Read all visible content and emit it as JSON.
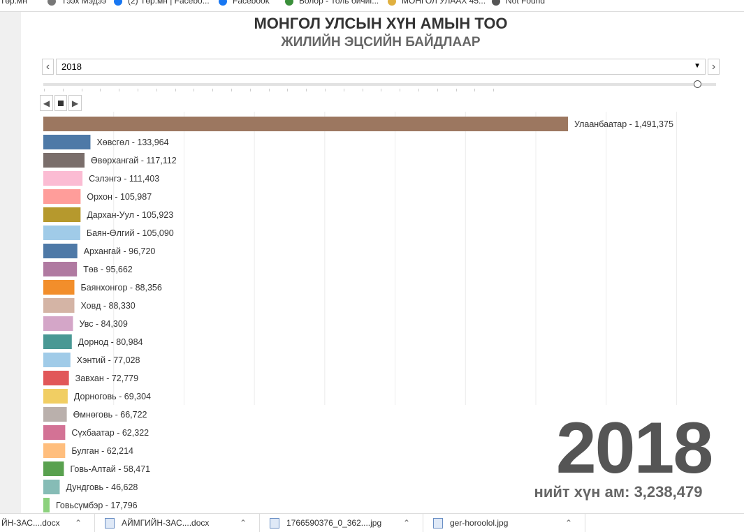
{
  "browser": {
    "bookmarks": [
      "Төр.мн",
      "Тээх Мэдээ",
      "(2) Төр.мн | Facebo...",
      "Facebook",
      "Болор - Толь бичиг...",
      "МОНГОЛ УЛААХ 45...",
      "Not Found"
    ],
    "downloads": [
      {
        "name": "ЙН-ЗАС....docx"
      },
      {
        "name": "АЙМГИЙН-ЗАС....docx"
      },
      {
        "name": "1766590376_0_362....jpg"
      },
      {
        "name": "ger-horoolol.jpg"
      }
    ]
  },
  "header": {
    "title": "МОНГОЛ УЛСЫН ХҮН АМЫН ТОО",
    "subtitle": "ЖИЛИЙН ЭЦСИЙН БАЙДЛААР"
  },
  "controls": {
    "selected_year": "2018",
    "prev": "‹",
    "next": "›",
    "slider_position": 1.0
  },
  "summary": {
    "year": "2018",
    "total": "нийт хүн ам: 3,238,479"
  },
  "chart_data": {
    "type": "bar",
    "orientation": "horizontal",
    "year": "2018",
    "grid": true,
    "xlim": [
      0,
      1800000
    ],
    "categories": [
      "Улаанбаатар",
      "Хөвсгөл",
      "Өвөрхангай",
      "Сэлэнгэ",
      "Орхон",
      "Дархан-Уул",
      "Баян-Өлгий",
      "Архангай",
      "Төв",
      "Баянхонгор",
      "Ховд",
      "Увс",
      "Дорнод",
      "Хэнтий",
      "Завхан",
      "Дорноговь",
      "Өмнөговь",
      "Сүхбаатар",
      "Булган",
      "Говь-Алтай",
      "Дундговь",
      "Говьсүмбэр"
    ],
    "values": [
      1491375,
      133964,
      117112,
      111403,
      105987,
      105923,
      105090,
      96720,
      95662,
      88356,
      88330,
      84309,
      80984,
      77028,
      72779,
      69304,
      66722,
      62322,
      62214,
      58471,
      46628,
      17796
    ],
    "labels": [
      "Улаанбаатар - 1,491,375",
      "Хөвсгөл - 133,964",
      "Өвөрхангай - 117,112",
      "Сэлэнгэ - 111,403",
      "Орхон - 105,987",
      "Дархан-Уул - 105,923",
      "Баян-Өлгий - 105,090",
      "Архангай - 96,720",
      "Төв - 95,662",
      "Баянхонгор - 88,356",
      "Ховд - 88,330",
      "Увс - 84,309",
      "Дорнод - 80,984",
      "Хэнтий - 77,028",
      "Завхан - 72,779",
      "Дорноговь - 69,304",
      "Өмнөговь - 66,722",
      "Сүхбаатар - 62,322",
      "Булган - 62,214",
      "Говь-Алтай - 58,471",
      "Дундговь - 46,628",
      "Говьсүмбэр - 17,796"
    ],
    "colors": [
      "#9c7760",
      "#4e79a7",
      "#7a6e6b",
      "#fbbcd3",
      "#ff9d9a",
      "#b6992d",
      "#a0cbe8",
      "#4e79a7",
      "#b07aa1",
      "#f28e2b",
      "#d4b4a5",
      "#d4a6c8",
      "#499894",
      "#a0cbe8",
      "#e15759",
      "#f1ce63",
      "#bab0ac",
      "#d37295",
      "#ffbe7d",
      "#59a14f",
      "#86bcb6",
      "#8cd17d"
    ]
  }
}
